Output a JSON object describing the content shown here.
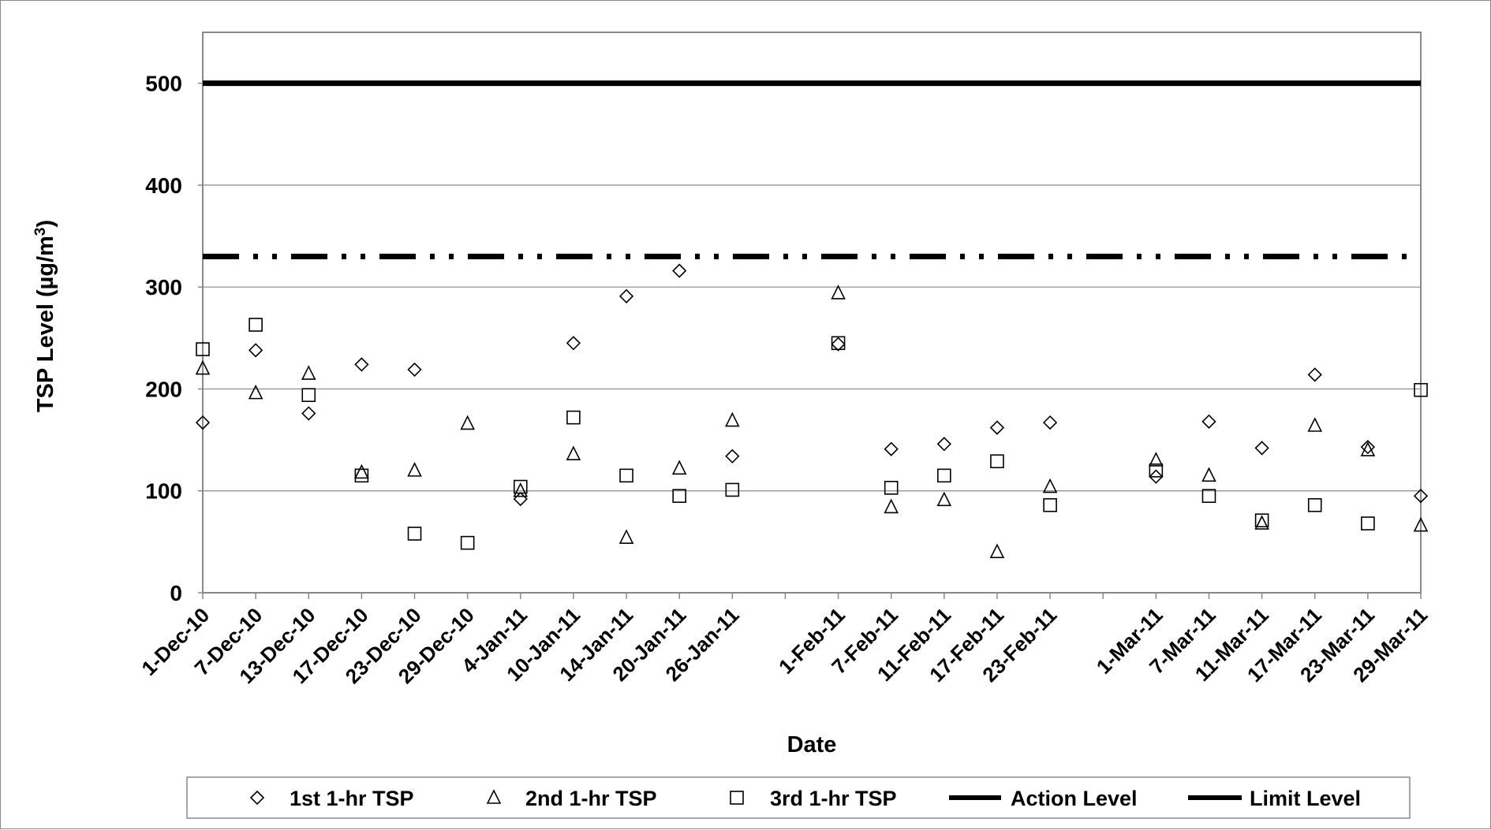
{
  "chart_data": {
    "type": "scatter",
    "title": "",
    "xlabel": "Date",
    "ylabel": "TSP Level  (µg/m³)",
    "ylabel_main": "TSP Level  (µg/m",
    "ylabel_sup": "3",
    "ylabel_close": ")",
    "ylim": [
      0,
      550
    ],
    "y_ticks": [
      0,
      100,
      200,
      300,
      400,
      500
    ],
    "grid": "horizontal",
    "legend_position": "bottom",
    "x_dates": [
      "1-Dec-10",
      "7-Dec-10",
      "13-Dec-10",
      "17-Dec-10",
      "23-Dec-10",
      "29-Dec-10",
      "4-Jan-11",
      "10-Jan-11",
      "14-Jan-11",
      "20-Jan-11",
      "26-Jan-11",
      "",
      "1-Feb-11",
      "7-Feb-11",
      "11-Feb-11",
      "17-Feb-11",
      "23-Feb-11",
      "",
      "1-Mar-11",
      "7-Mar-11",
      "11-Mar-11",
      "17-Mar-11",
      "23-Mar-11",
      "29-Mar-11"
    ],
    "series": [
      {
        "name": "1st 1-hr TSP",
        "marker": "diamond",
        "values": [
          167,
          238,
          176,
          224,
          219,
          null,
          92,
          245,
          291,
          316,
          134,
          null,
          244,
          141,
          146,
          162,
          167,
          null,
          114,
          168,
          142,
          214,
          143,
          95
        ]
      },
      {
        "name": "2nd 1-hr TSP",
        "marker": "triangle",
        "values": [
          220,
          196,
          215,
          118,
          120,
          166,
          100,
          136,
          54,
          122,
          169,
          null,
          294,
          84,
          91,
          40,
          104,
          null,
          130,
          115,
          68,
          164,
          140,
          66
        ]
      },
      {
        "name": "3rd 1-hr TSP",
        "marker": "square",
        "values": [
          239,
          263,
          194,
          115,
          58,
          49,
          104,
          172,
          115,
          95,
          101,
          null,
          245,
          103,
          115,
          129,
          86,
          null,
          120,
          95,
          71,
          86,
          68,
          199
        ]
      }
    ],
    "reference_lines": [
      {
        "name": "Action Level",
        "value": 330,
        "style": "dash-dot-dot"
      },
      {
        "name": "Limit Level",
        "value": 500,
        "style": "solid"
      }
    ]
  },
  "legend": {
    "items": [
      "1st 1-hr TSP",
      "2nd 1-hr TSP",
      "3rd 1-hr TSP",
      "Action Level",
      "Limit Level"
    ]
  }
}
